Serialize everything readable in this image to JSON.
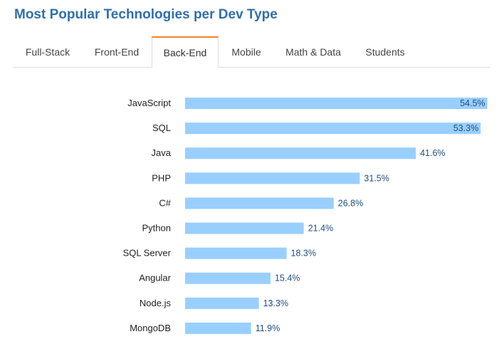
{
  "header": {
    "title": "Most Popular Technologies per Dev Type"
  },
  "tabs": [
    {
      "label": "Full-Stack",
      "active": false
    },
    {
      "label": "Front-End",
      "active": false
    },
    {
      "label": "Back-End",
      "active": true
    },
    {
      "label": "Mobile",
      "active": false
    },
    {
      "label": "Math & Data",
      "active": false
    },
    {
      "label": "Students",
      "active": false
    }
  ],
  "colors": {
    "title": "#2f6fad",
    "active_tab_accent": "#f48024",
    "bar": "#99cfff",
    "value_text": "#1f4f80"
  },
  "chart_data": {
    "type": "bar",
    "orientation": "horizontal",
    "categories": [
      "JavaScript",
      "SQL",
      "Java",
      "PHP",
      "C#",
      "Python",
      "SQL Server",
      "Angular",
      "Node.js",
      "MongoDB"
    ],
    "values": [
      54.5,
      53.3,
      41.6,
      31.5,
      26.8,
      21.4,
      18.3,
      15.4,
      13.3,
      11.9
    ],
    "value_labels": [
      "54.5%",
      "53.3%",
      "41.6%",
      "31.5%",
      "26.8%",
      "21.4%",
      "18.3%",
      "15.4%",
      "13.3%",
      "11.9%"
    ],
    "unit": "%",
    "xlim": [
      0,
      56
    ],
    "grid": false,
    "legend": "none"
  }
}
